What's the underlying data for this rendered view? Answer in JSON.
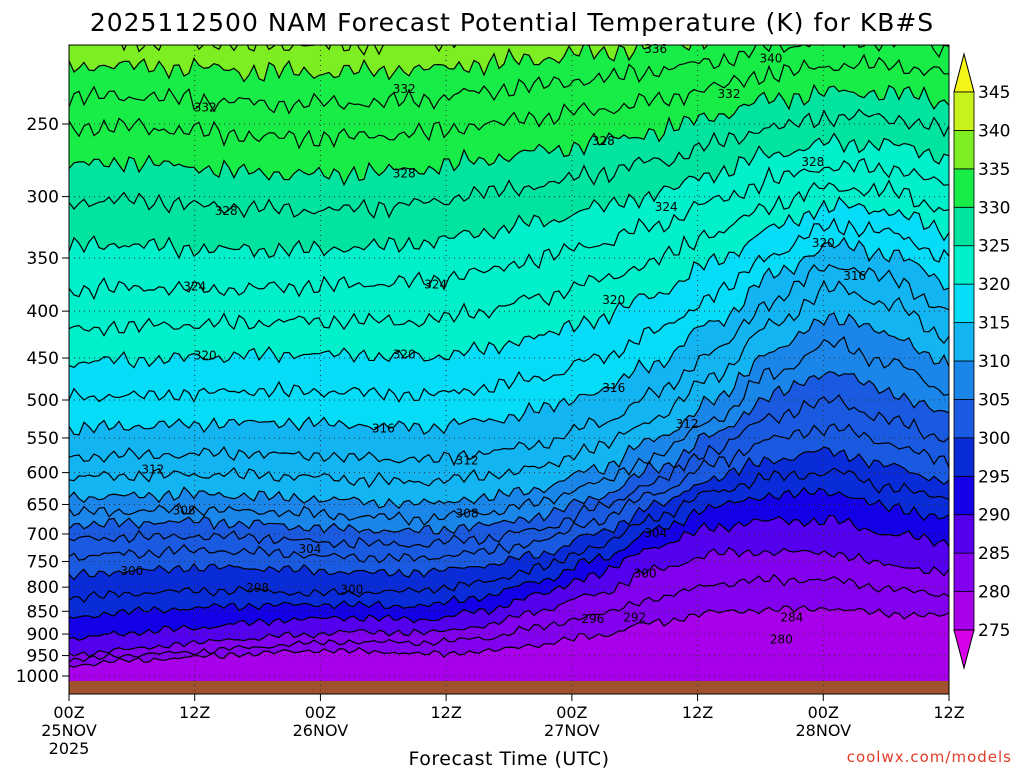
{
  "title": "2025112500 NAM Forecast Potential Temperature (K) for KB#S",
  "credit": "coolwx.com/models",
  "chart_data": {
    "type": "heatmap",
    "title": "2025112500 NAM Forecast Potential Temperature (K) for KB#S",
    "xlabel": "Forecast Time (UTC)",
    "ylabel": "",
    "y_scale": "log-pressure",
    "ylim": [
      1030,
      200
    ],
    "y_ticks": [
      250,
      300,
      350,
      400,
      450,
      500,
      550,
      600,
      650,
      700,
      750,
      800,
      850,
      900,
      950,
      1000
    ],
    "xlim": [
      0,
      84
    ],
    "x_ticks": [
      {
        "hour": 0,
        "label": "00Z",
        "date": "25NOV",
        "year": "2025"
      },
      {
        "hour": 12,
        "label": "12Z",
        "date": "",
        "year": ""
      },
      {
        "hour": 24,
        "label": "00Z",
        "date": "26NOV",
        "year": ""
      },
      {
        "hour": 36,
        "label": "12Z",
        "date": "",
        "year": ""
      },
      {
        "hour": 48,
        "label": "00Z",
        "date": "27NOV",
        "year": ""
      },
      {
        "hour": 60,
        "label": "12Z",
        "date": "",
        "year": ""
      },
      {
        "hour": 72,
        "label": "00Z",
        "date": "28NOV",
        "year": ""
      },
      {
        "hour": 84,
        "label": "12Z",
        "date": "",
        "year": ""
      }
    ],
    "grid": true,
    "colorbar": {
      "levels": [
        275,
        280,
        285,
        290,
        295,
        300,
        305,
        310,
        315,
        320,
        325,
        330,
        335,
        340,
        345
      ],
      "colors": [
        "#d800e8",
        "#a800ea",
        "#8200ee",
        "#5400ee",
        "#1400e6",
        "#0a2cd8",
        "#1a5ae0",
        "#1a86ea",
        "#12b4f2",
        "#04dcf8",
        "#00f0cc",
        "#00e4a0",
        "#18ec46",
        "#7cee22",
        "#c8f21e",
        "#f4f416"
      ],
      "placement": "right"
    },
    "contour_interval": 2,
    "isentropes": [
      {
        "theta": 280,
        "p": [
          974,
          962,
          955,
          946,
          939,
          940,
          947,
          942,
          924,
          903,
          874,
          852,
          846,
          844,
          856,
          859
        ]
      },
      {
        "theta": 284,
        "p": [
          962,
          949,
          942,
          932,
          921,
          917,
          920,
          911,
          885,
          857,
          822,
          794,
          786,
          786,
          804,
          816
        ]
      },
      {
        "theta": 288,
        "p": [
          948,
          935,
          922,
          911,
          901,
          894,
          897,
          883,
          849,
          813,
          766,
          736,
          732,
          734,
          757,
          771
        ]
      },
      {
        "theta": 292,
        "p": [
          911,
          898,
          888,
          876,
          867,
          863,
          868,
          851,
          815,
          774,
          722,
          687,
          676,
          677,
          700,
          715
        ]
      },
      {
        "theta": 296,
        "p": [
          864,
          851,
          843,
          838,
          836,
          837,
          839,
          821,
          788,
          746,
          694,
          653,
          635,
          630,
          655,
          672
        ]
      },
      {
        "theta": 298,
        "p": [
          823,
          813,
          807,
          806,
          812,
          812,
          806,
          792,
          763,
          722,
          671,
          629,
          607,
          598,
          623,
          641
        ]
      },
      {
        "theta": 300,
        "p": [
          778,
          768,
          762,
          762,
          766,
          771,
          771,
          759,
          737,
          699,
          652,
          608,
          580,
          568,
          591,
          613
        ]
      },
      {
        "theta": 302,
        "p": [
          741,
          735,
          730,
          732,
          738,
          743,
          744,
          733,
          713,
          677,
          631,
          586,
          551,
          535,
          558,
          584
        ]
      },
      {
        "theta": 304,
        "p": [
          710,
          706,
          703,
          705,
          712,
          717,
          719,
          709,
          692,
          656,
          613,
          565,
          521,
          501,
          526,
          551
        ]
      },
      {
        "theta": 306,
        "p": [
          684,
          681,
          678,
          681,
          687,
          693,
          695,
          686,
          670,
          637,
          594,
          545,
          493,
          466,
          490,
          520
        ]
      },
      {
        "theta": 308,
        "p": [
          663,
          661,
          658,
          660,
          664,
          670,
          673,
          664,
          648,
          616,
          575,
          524,
          467,
          434,
          455,
          489
        ]
      },
      {
        "theta": 310,
        "p": [
          638,
          636,
          634,
          635,
          640,
          645,
          649,
          640,
          625,
          593,
          552,
          500,
          441,
          405,
          423,
          458
        ]
      },
      {
        "theta": 312,
        "p": [
          608,
          605,
          603,
          603,
          606,
          611,
          614,
          606,
          592,
          563,
          523,
          470,
          413,
          378,
          393,
          428
        ]
      },
      {
        "theta": 314,
        "p": [
          578,
          575,
          573,
          572,
          574,
          578,
          581,
          573,
          559,
          530,
          492,
          441,
          389,
          356,
          368,
          400
        ]
      },
      {
        "theta": 316,
        "p": [
          538,
          535,
          532,
          529,
          530,
          533,
          536,
          528,
          514,
          490,
          455,
          411,
          366,
          338,
          346,
          373
        ]
      },
      {
        "theta": 318,
        "p": [
          497,
          495,
          492,
          489,
          489,
          491,
          494,
          486,
          472,
          451,
          421,
          384,
          346,
          322,
          328,
          350
        ]
      },
      {
        "theta": 320,
        "p": [
          455,
          452,
          450,
          447,
          446,
          447,
          449,
          441,
          426,
          408,
          383,
          353,
          325,
          307,
          311,
          329
        ]
      },
      {
        "theta": 322,
        "p": [
          418,
          415,
          414,
          412,
          410,
          410,
          410,
          401,
          387,
          371,
          352,
          328,
          306,
          293,
          296,
          310
        ]
      },
      {
        "theta": 324,
        "p": [
          380,
          377,
          378,
          378,
          376,
          374,
          372,
          363,
          351,
          337,
          322,
          303,
          287,
          278,
          280,
          291
        ]
      },
      {
        "theta": 326,
        "p": [
          340,
          338,
          341,
          343,
          343,
          340,
          337,
          329,
          320,
          309,
          298,
          283,
          269,
          262,
          263,
          272
        ]
      },
      {
        "theta": 328,
        "p": [
          305,
          303,
          306,
          309,
          311,
          309,
          305,
          298,
          291,
          284,
          275,
          263,
          252,
          246,
          246,
          253
        ]
      },
      {
        "theta": 330,
        "p": [
          277,
          275,
          278,
          282,
          284,
          283,
          280,
          274,
          268,
          262,
          255,
          245,
          235,
          231,
          231,
          236
        ]
      },
      {
        "theta": 332,
        "p": [
          253,
          252,
          254,
          257,
          259,
          258,
          256,
          251,
          246,
          241,
          236,
          228,
          220,
          216,
          216,
          220
        ]
      },
      {
        "theta": 334,
        "p": [
          234,
          233,
          235,
          237,
          238,
          237,
          235,
          231,
          227,
          223,
          219,
          213,
          206,
          203,
          203,
          207
        ]
      },
      {
        "theta": 336,
        "p": [
          217,
          216,
          217,
          219,
          220,
          219,
          218,
          215,
          212,
          209,
          206,
          201,
          196,
          194,
          194,
          197
        ]
      },
      {
        "theta": 338,
        "p": [
          204,
          203,
          204,
          205,
          205,
          205,
          204,
          202,
          200,
          198,
          196,
          192,
          189,
          188,
          188,
          190
        ]
      },
      {
        "theta": 340,
        "p": [
          192,
          191,
          192,
          193,
          193,
          193,
          192,
          191,
          189,
          188,
          187,
          184,
          182,
          181,
          181,
          183
        ]
      }
    ],
    "contour_labels": [
      {
        "theta": 332,
        "hour": 13,
        "p": 240
      },
      {
        "theta": 332,
        "hour": 32,
        "p": 229
      },
      {
        "theta": 332,
        "hour": 63,
        "p": 232
      },
      {
        "theta": 336,
        "hour": 56,
        "p": 207
      },
      {
        "theta": 340,
        "hour": 67,
        "p": 212
      },
      {
        "theta": 328,
        "hour": 15,
        "p": 311
      },
      {
        "theta": 328,
        "hour": 32,
        "p": 283
      },
      {
        "theta": 328,
        "hour": 51,
        "p": 261
      },
      {
        "theta": 328,
        "hour": 71,
        "p": 275
      },
      {
        "theta": 324,
        "hour": 12,
        "p": 376
      },
      {
        "theta": 324,
        "hour": 35,
        "p": 374
      },
      {
        "theta": 324,
        "hour": 57,
        "p": 308
      },
      {
        "theta": 320,
        "hour": 13,
        "p": 447
      },
      {
        "theta": 320,
        "hour": 32,
        "p": 446
      },
      {
        "theta": 320,
        "hour": 52,
        "p": 389
      },
      {
        "theta": 320,
        "hour": 72,
        "p": 337
      },
      {
        "theta": 316,
        "hour": 30,
        "p": 537
      },
      {
        "theta": 316,
        "hour": 52,
        "p": 485
      },
      {
        "theta": 316,
        "hour": 75,
        "p": 366
      },
      {
        "theta": 312,
        "hour": 8,
        "p": 595
      },
      {
        "theta": 312,
        "hour": 38,
        "p": 582
      },
      {
        "theta": 312,
        "hour": 59,
        "p": 531
      },
      {
        "theta": 308,
        "hour": 11,
        "p": 660
      },
      {
        "theta": 308,
        "hour": 38,
        "p": 665
      },
      {
        "theta": 304,
        "hour": 23,
        "p": 727
      },
      {
        "theta": 304,
        "hour": 56,
        "p": 698
      },
      {
        "theta": 300,
        "hour": 6,
        "p": 768
      },
      {
        "theta": 300,
        "hour": 27,
        "p": 805
      },
      {
        "theta": 300,
        "hour": 55,
        "p": 773
      },
      {
        "theta": 298,
        "hour": 18,
        "p": 802
      },
      {
        "theta": 296,
        "hour": 50,
        "p": 867
      },
      {
        "theta": 292,
        "hour": 54,
        "p": 863
      },
      {
        "theta": 284,
        "hour": 69,
        "p": 863
      },
      {
        "theta": 280,
        "hour": 68,
        "p": 912
      }
    ]
  }
}
